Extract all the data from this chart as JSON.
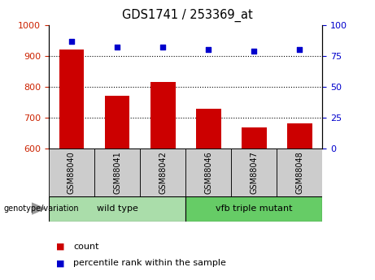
{
  "title": "GDS1741 / 253369_at",
  "categories": [
    "GSM88040",
    "GSM88041",
    "GSM88042",
    "GSM88046",
    "GSM88047",
    "GSM88048"
  ],
  "bar_values": [
    920,
    770,
    815,
    728,
    668,
    682
  ],
  "scatter_values": [
    87,
    82,
    82,
    80,
    79,
    80
  ],
  "bar_color": "#cc0000",
  "scatter_color": "#0000cc",
  "ylim_left": [
    600,
    1000
  ],
  "ylim_right": [
    0,
    100
  ],
  "yticks_left": [
    600,
    700,
    800,
    900,
    1000
  ],
  "yticks_right": [
    0,
    25,
    50,
    75,
    100
  ],
  "group_wt_label": "wild type",
  "group_mut_label": "vfb triple mutant",
  "group_wt_color": "#aaddaa",
  "group_mut_color": "#66cc66",
  "group_label_prefix": "genotype/variation",
  "legend_count_label": "count",
  "legend_pct_label": "percentile rank within the sample",
  "bar_width": 0.55,
  "tick_label_color_left": "#cc2200",
  "tick_label_color_right": "#0000cc",
  "bg_plot": "#ffffff",
  "bg_label": "#cccccc",
  "separator_color": "#000000"
}
